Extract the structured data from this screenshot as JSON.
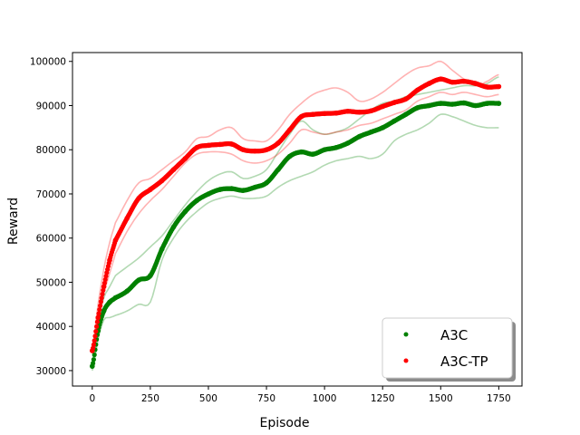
{
  "chart_data": {
    "type": "line",
    "xlabel": "Episode",
    "ylabel": "Reward",
    "xlim": [
      -85,
      1850
    ],
    "ylim": [
      26500,
      102000
    ],
    "xticks": [
      0,
      250,
      500,
      750,
      1000,
      1250,
      1500,
      1750
    ],
    "yticks": [
      30000,
      40000,
      50000,
      60000,
      70000,
      80000,
      90000,
      100000
    ],
    "grid": false,
    "legend_position": "lower-right",
    "x": [
      0,
      25,
      50,
      75,
      100,
      150,
      200,
      250,
      300,
      350,
      400,
      450,
      500,
      550,
      600,
      650,
      700,
      750,
      800,
      850,
      900,
      950,
      1000,
      1050,
      1100,
      1150,
      1200,
      1250,
      1300,
      1350,
      1400,
      1450,
      1500,
      1550,
      1600,
      1650,
      1700,
      1750
    ],
    "series": [
      {
        "name": "A3C",
        "color": "#008000",
        "values": [
          31000,
          39000,
          43500,
          45500,
          46500,
          48000,
          50500,
          51500,
          57500,
          62500,
          66000,
          68500,
          70000,
          71000,
          71200,
          70800,
          71500,
          72500,
          75500,
          78500,
          79500,
          79000,
          80000,
          80500,
          81500,
          83000,
          84000,
          85000,
          86500,
          88000,
          89500,
          90000,
          90500,
          90300,
          90600,
          90000,
          90500,
          90500
        ]
      },
      {
        "name": "A3C-TP",
        "color": "#ff0000",
        "values": [
          34500,
          42000,
          49000,
          55000,
          59500,
          64500,
          69000,
          71000,
          73000,
          75500,
          78000,
          80500,
          81000,
          81200,
          81300,
          80000,
          79700,
          80000,
          81500,
          84500,
          87500,
          88000,
          88200,
          88300,
          88700,
          88500,
          88800,
          89800,
          90700,
          91500,
          93500,
          95000,
          96000,
          95300,
          95500,
          95000,
          94200,
          94300
        ]
      },
      {
        "name": "",
        "color": "#008000",
        "faint": true,
        "values": [
          30000,
          37000,
          41500,
          42000,
          42500,
          43500,
          45000,
          45500,
          55000,
          60000,
          63500,
          66000,
          68000,
          69000,
          69500,
          69000,
          69000,
          69500,
          71500,
          73000,
          74000,
          75000,
          76500,
          77500,
          78000,
          78500,
          78000,
          79000,
          82000,
          83500,
          84500,
          86000,
          88000,
          87500,
          86500,
          85500,
          85000,
          85000
        ]
      },
      {
        "name": "",
        "color": "#008000",
        "faint": true,
        "values": [
          32000,
          41000,
          46500,
          49000,
          51500,
          53500,
          55500,
          58000,
          60500,
          64000,
          67500,
          70500,
          73000,
          74500,
          75000,
          73500,
          74000,
          75500,
          79500,
          83500,
          86500,
          84500,
          83500,
          84000,
          85000,
          87000,
          89000,
          90500,
          91000,
          92000,
          92500,
          93000,
          93500,
          94000,
          94500,
          94500,
          95000,
          96500
        ]
      },
      {
        "name": "",
        "color": "#ff0000",
        "faint": true,
        "values": [
          35000,
          45000,
          53000,
          59000,
          63500,
          68500,
          72500,
          73500,
          75500,
          77500,
          79500,
          82500,
          83000,
          84500,
          85000,
          82500,
          82000,
          82000,
          84500,
          88000,
          90500,
          92500,
          93500,
          94000,
          93000,
          91000,
          91500,
          93000,
          95000,
          97000,
          98500,
          99000,
          100000,
          98000,
          96000,
          94500,
          95500,
          97000
        ]
      },
      {
        "name": "",
        "color": "#ff0000",
        "faint": true,
        "values": [
          34000,
          41000,
          47500,
          52000,
          56500,
          61500,
          65500,
          68500,
          71000,
          74000,
          77000,
          79000,
          79500,
          79500,
          79000,
          77500,
          77000,
          77500,
          79000,
          81500,
          84500,
          84000,
          83500,
          84000,
          84500,
          85500,
          86000,
          87000,
          88000,
          89000,
          91000,
          92000,
          93000,
          92500,
          93000,
          92500,
          92000,
          92500
        ]
      }
    ]
  }
}
